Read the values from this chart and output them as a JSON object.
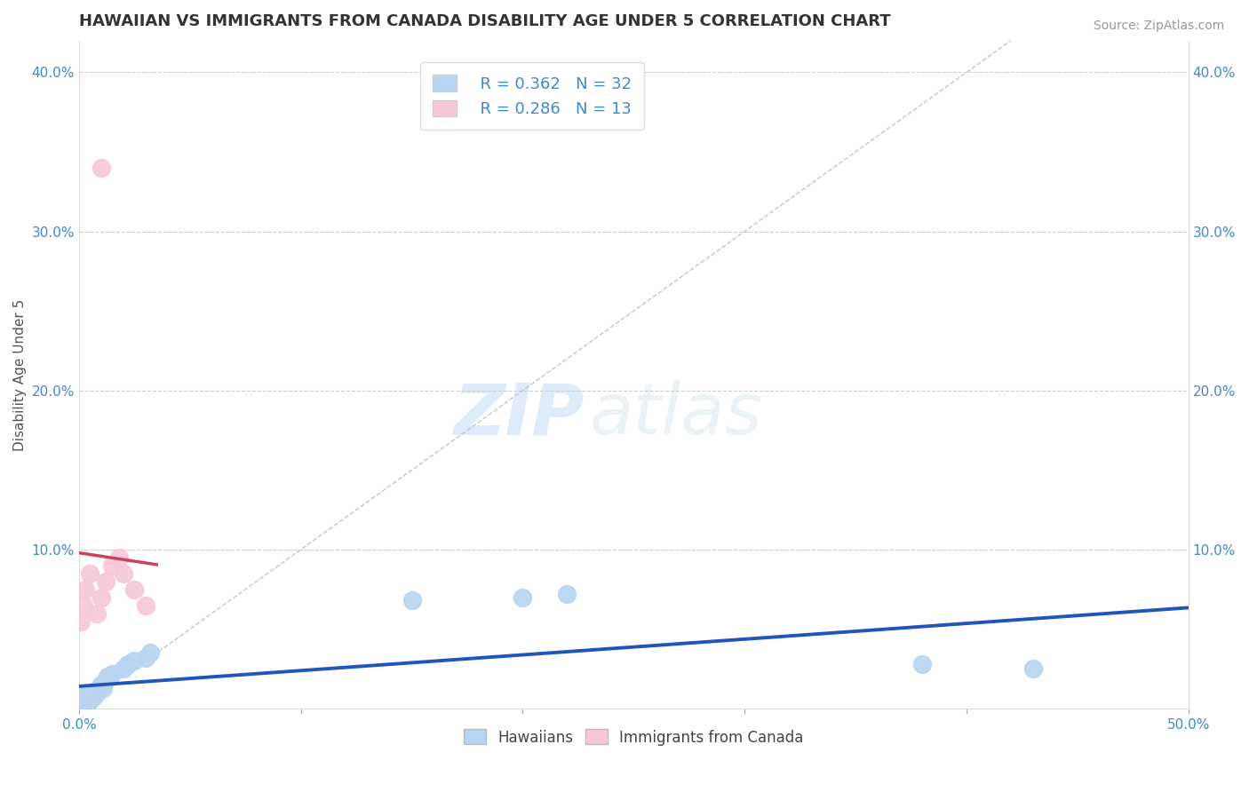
{
  "title": "HAWAIIAN VS IMMIGRANTS FROM CANADA DISABILITY AGE UNDER 5 CORRELATION CHART",
  "source": "Source: ZipAtlas.com",
  "xlabel": "",
  "ylabel": "Disability Age Under 5",
  "xlim": [
    0.0,
    0.5
  ],
  "ylim": [
    0.0,
    0.42
  ],
  "xticks": [
    0.0,
    0.1,
    0.2,
    0.3,
    0.4,
    0.5
  ],
  "yticks": [
    0.0,
    0.1,
    0.2,
    0.3,
    0.4
  ],
  "xticklabels": [
    "0.0%",
    "",
    "",
    "",
    "",
    ""
  ],
  "xticklabels_right": [
    "",
    "",
    "",
    "",
    "",
    "50.0%"
  ],
  "yticklabels": [
    "",
    "10.0%",
    "20.0%",
    "30.0%",
    "40.0%"
  ],
  "background_color": "#ffffff",
  "grid_color": "#d0d0d0",
  "hawaiian_color": "#b8d4f0",
  "canadian_color": "#f8c8d8",
  "hawaiian_line_color": "#2255bb",
  "canadian_line_color": "#d04060",
  "legend_r1": "R = 0.362",
  "legend_n1": "N = 32",
  "legend_r2": "R = 0.286",
  "legend_n2": "N = 13",
  "hawaiian_x": [
    0.001,
    0.001,
    0.002,
    0.002,
    0.002,
    0.003,
    0.003,
    0.003,
    0.004,
    0.004,
    0.004,
    0.005,
    0.005,
    0.006,
    0.007,
    0.008,
    0.008,
    0.01,
    0.011,
    0.012,
    0.013,
    0.015,
    0.02,
    0.022,
    0.025,
    0.03,
    0.032,
    0.15,
    0.2,
    0.22,
    0.38,
    0.43
  ],
  "hawaiian_y": [
    0.005,
    0.003,
    0.008,
    0.004,
    0.006,
    0.003,
    0.007,
    0.005,
    0.004,
    0.008,
    0.006,
    0.01,
    0.005,
    0.007,
    0.008,
    0.01,
    0.012,
    0.015,
    0.013,
    0.018,
    0.02,
    0.022,
    0.025,
    0.028,
    0.03,
    0.032,
    0.035,
    0.068,
    0.07,
    0.072,
    0.028,
    0.025
  ],
  "canadian_x": [
    0.001,
    0.002,
    0.003,
    0.005,
    0.008,
    0.01,
    0.012,
    0.015,
    0.018,
    0.02,
    0.025,
    0.03,
    0.01
  ],
  "canadian_y": [
    0.055,
    0.065,
    0.075,
    0.085,
    0.06,
    0.07,
    0.08,
    0.09,
    0.095,
    0.085,
    0.075,
    0.065,
    0.34
  ],
  "watermark_zip": "ZIP",
  "watermark_atlas": "atlas",
  "title_fontsize": 13,
  "label_fontsize": 11,
  "tick_fontsize": 11,
  "source_fontsize": 10
}
